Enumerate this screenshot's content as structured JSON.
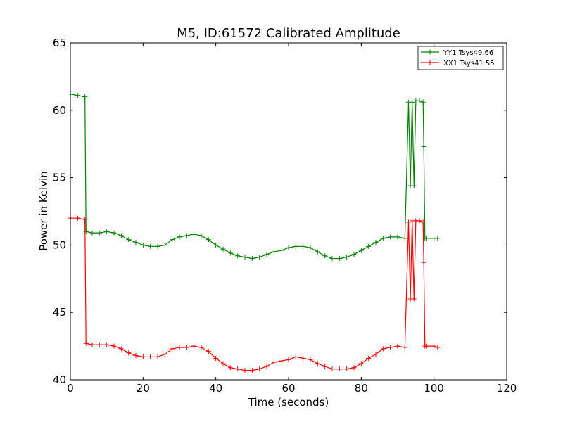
{
  "chart_data": {
    "type": "line",
    "title": "M5, ID:61572 Calibrated Amplitude",
    "xlabel": "Time (seconds)",
    "ylabel": "Power in Kelvin",
    "xlim": [
      0,
      120
    ],
    "ylim": [
      40,
      65
    ],
    "xticks": [
      "0",
      "20",
      "40",
      "60",
      "80",
      "100",
      "120"
    ],
    "yticks": [
      "40",
      "45",
      "50",
      "55",
      "60",
      "65"
    ],
    "grid": false,
    "legend_position": "top-right",
    "series": [
      {
        "name": "YY1 Tsys49.66",
        "color": "#008000",
        "marker": "+",
        "x": [
          0,
          2,
          4,
          4.3,
          6,
          8,
          10,
          12,
          14,
          16,
          18,
          20,
          22,
          24,
          26,
          28,
          30,
          32,
          34,
          36,
          38,
          40,
          42,
          44,
          46,
          48,
          50,
          52,
          54,
          56,
          58,
          60,
          62,
          64,
          66,
          68,
          70,
          72,
          74,
          76,
          78,
          80,
          82,
          84,
          86,
          88,
          90,
          92,
          93,
          93.5,
          94,
          94.5,
          95,
          96,
          97,
          97.2,
          97.5,
          98,
          100,
          101
        ],
        "y": [
          61.2,
          61.1,
          61.0,
          51.0,
          50.9,
          50.9,
          51.0,
          50.9,
          50.7,
          50.4,
          50.2,
          50.0,
          49.9,
          49.9,
          50.0,
          50.4,
          50.6,
          50.7,
          50.8,
          50.7,
          50.4,
          50.0,
          49.7,
          49.4,
          49.2,
          49.1,
          49.0,
          49.1,
          49.3,
          49.5,
          49.6,
          49.8,
          49.9,
          49.9,
          49.8,
          49.5,
          49.2,
          49.0,
          49.0,
          49.1,
          49.3,
          49.6,
          49.9,
          50.2,
          50.5,
          50.6,
          50.6,
          50.5,
          60.6,
          54.4,
          60.6,
          54.4,
          60.7,
          60.7,
          60.6,
          57.3,
          50.5,
          50.5,
          50.5,
          50.5
        ]
      },
      {
        "name": "XX1 Tsys41.55",
        "color": "#ff0000",
        "marker": "+",
        "x": [
          0,
          2,
          4,
          4.3,
          6,
          8,
          10,
          12,
          14,
          16,
          18,
          20,
          22,
          24,
          26,
          28,
          30,
          32,
          34,
          36,
          38,
          40,
          42,
          44,
          46,
          48,
          50,
          52,
          54,
          56,
          58,
          60,
          62,
          64,
          66,
          68,
          70,
          72,
          74,
          76,
          78,
          80,
          82,
          84,
          86,
          88,
          90,
          92,
          93,
          93.5,
          94,
          94.5,
          95,
          96,
          97,
          97.2,
          97.5,
          98,
          100,
          101
        ],
        "y": [
          52.0,
          52.0,
          51.9,
          42.7,
          42.6,
          42.6,
          42.6,
          42.5,
          42.3,
          42.0,
          41.8,
          41.7,
          41.7,
          41.7,
          41.9,
          42.3,
          42.4,
          42.4,
          42.5,
          42.4,
          42.1,
          41.6,
          41.2,
          40.9,
          40.8,
          40.7,
          40.7,
          40.8,
          41.0,
          41.3,
          41.4,
          41.5,
          41.7,
          41.6,
          41.5,
          41.2,
          41.0,
          40.8,
          40.8,
          40.8,
          40.9,
          41.2,
          41.6,
          41.9,
          42.3,
          42.4,
          42.5,
          42.4,
          51.7,
          46.0,
          51.8,
          46.0,
          51.8,
          51.8,
          51.7,
          48.7,
          42.5,
          42.5,
          42.5,
          42.4
        ]
      }
    ]
  }
}
